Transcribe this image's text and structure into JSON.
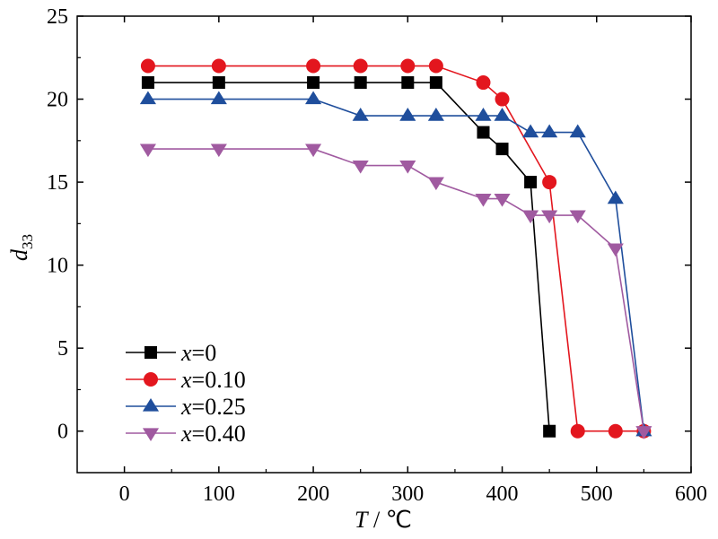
{
  "chart_data": {
    "type": "line",
    "title": "",
    "xlabel": "T / ℃",
    "ylabel": "d33",
    "xlim": [
      -50,
      600
    ],
    "ylim": [
      -2.5,
      25
    ],
    "xticks": [
      0,
      100,
      200,
      300,
      400,
      500,
      600
    ],
    "yticks": [
      0,
      5,
      10,
      15,
      20,
      25
    ],
    "grid": false,
    "legend_position": "bottom-left",
    "series": [
      {
        "name": "x=0",
        "color": "#000000",
        "marker": "square",
        "x": [
          25,
          100,
          200,
          250,
          300,
          330,
          380,
          400,
          430,
          450
        ],
        "y": [
          21,
          21,
          21,
          21,
          21,
          21,
          18,
          17,
          15,
          0
        ]
      },
      {
        "name": "x=0.10",
        "color": "#e3161e",
        "marker": "circle",
        "x": [
          25,
          100,
          200,
          250,
          300,
          330,
          380,
          400,
          450,
          480,
          520,
          550
        ],
        "y": [
          22,
          22,
          22,
          22,
          22,
          22,
          21,
          20,
          15,
          0,
          0,
          0
        ]
      },
      {
        "name": "x=0.25",
        "color": "#1f4e9c",
        "marker": "triangle-up",
        "x": [
          25,
          100,
          200,
          250,
          300,
          330,
          380,
          400,
          430,
          450,
          480,
          520,
          550
        ],
        "y": [
          20,
          20,
          20,
          19,
          19,
          19,
          19,
          19,
          18,
          18,
          18,
          14,
          0
        ]
      },
      {
        "name": "x=0.40",
        "color": "#a05aa0",
        "marker": "triangle-down",
        "x": [
          25,
          100,
          200,
          250,
          300,
          330,
          380,
          400,
          430,
          450,
          480,
          520,
          550
        ],
        "y": [
          17,
          17,
          17,
          16,
          16,
          15,
          14,
          14,
          13,
          13,
          13,
          11,
          0
        ]
      }
    ]
  }
}
